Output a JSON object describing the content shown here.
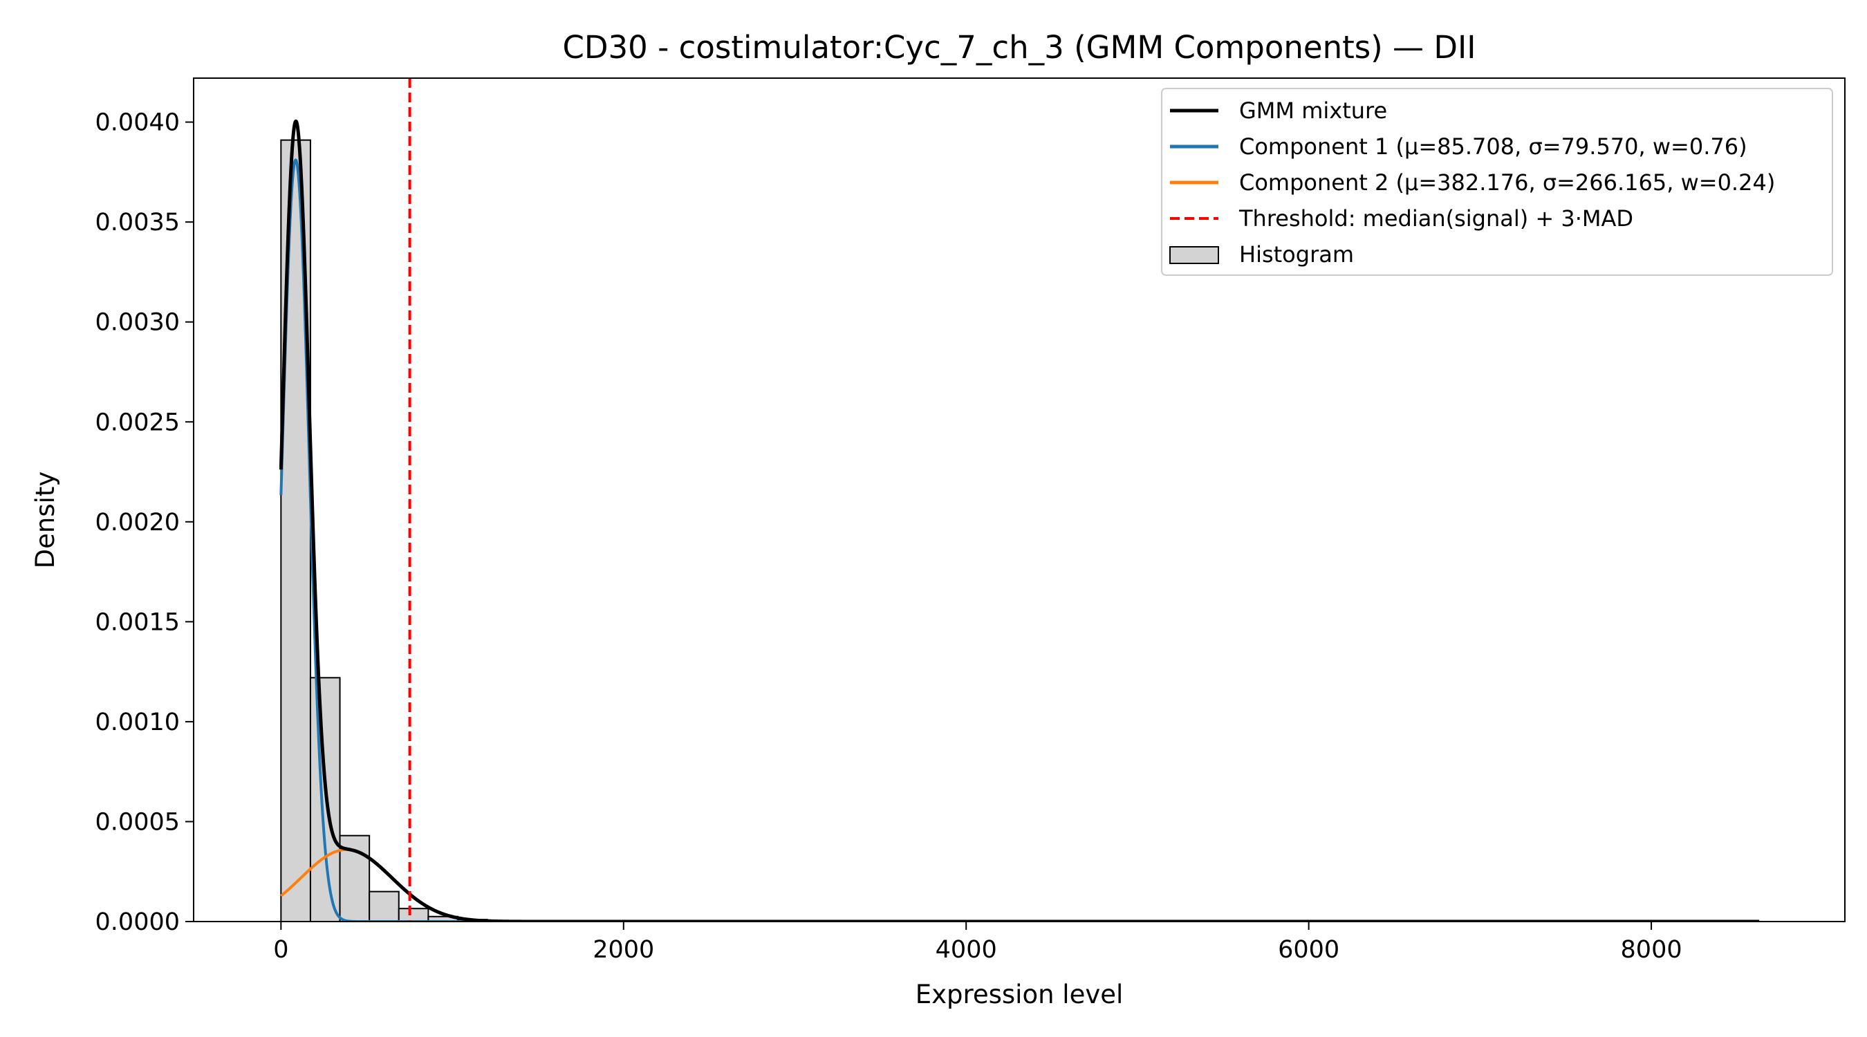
{
  "chart_data": {
    "type": "histogram",
    "title": "CD30 - costimulator:Cyc_7_ch_3 (GMM Components) — DII",
    "xlabel": "Expression level",
    "ylabel": "Density",
    "xlim": [
      -510,
      9130
    ],
    "ylim": [
      0,
      0.00422
    ],
    "xticks": [
      0,
      2000,
      4000,
      6000,
      8000
    ],
    "xtick_labels": [
      "0",
      "2000",
      "4000",
      "6000",
      "8000"
    ],
    "yticks": [
      0,
      0.0005,
      0.001,
      0.0015,
      0.002,
      0.0025,
      0.003,
      0.0035,
      0.004
    ],
    "ytick_labels": [
      "0.0000",
      "0.0005",
      "0.0010",
      "0.0015",
      "0.0020",
      "0.0025",
      "0.0030",
      "0.0035",
      "0.0040"
    ],
    "grid": false,
    "legend_position": "top-right",
    "histogram": {
      "name": "Histogram",
      "bin_edges": [
        0,
        172,
        344,
        516,
        688,
        860,
        1032,
        1204,
        1376,
        1548,
        1720,
        1892,
        2064,
        2236,
        2408,
        2580,
        2752,
        2924,
        3096,
        3268,
        3440,
        3612,
        3784,
        3956,
        4128,
        4300,
        4472,
        4644,
        4816,
        4988,
        5160,
        5332,
        5504,
        5676,
        5848,
        6020,
        6192,
        6364,
        6536,
        6708,
        6880,
        7052,
        7224,
        7396,
        7568,
        7740,
        7912,
        8084,
        8256,
        8428,
        8600
      ],
      "densities": [
        0.00391,
        0.00122,
        0.00043,
        0.00015,
        6.5e-05,
        2.5e-05,
        1e-05,
        4e-06,
        2e-06,
        1e-06,
        0,
        0,
        0,
        0,
        0,
        0,
        0,
        0,
        0,
        0,
        0,
        0,
        0,
        0,
        0,
        0,
        0,
        0,
        0,
        0,
        0,
        0,
        0,
        0,
        0,
        0,
        0,
        0,
        0,
        0,
        0,
        0,
        0,
        0,
        0,
        0,
        0,
        0,
        0,
        0
      ],
      "fill": "#d3d3d3",
      "edge": "#000000"
    },
    "series": [
      {
        "name": "GMM mixture",
        "kind": "mixture",
        "color": "#000000",
        "x_range": [
          0,
          8630
        ]
      },
      {
        "name": "Component 1 (μ=85.708, σ=79.570, w=0.76)",
        "kind": "gaussian",
        "mu": 85.708,
        "sigma": 79.57,
        "weight": 0.76,
        "color": "#1f77b4",
        "x_range": [
          0,
          8630
        ]
      },
      {
        "name": "Component 2 (μ=382.176, σ=266.165, w=0.24)",
        "kind": "gaussian",
        "mu": 382.176,
        "sigma": 266.165,
        "weight": 0.24,
        "color": "#ff7f0e",
        "x_range": [
          0,
          8630
        ]
      }
    ],
    "threshold": {
      "name": "Threshold: median(signal) + 3·MAD",
      "x": 752,
      "color": "#ff0000",
      "style": "dashed"
    },
    "legend": [
      {
        "label": "GMM mixture",
        "color": "#000000",
        "style": "line"
      },
      {
        "label": "Component 1 (μ=85.708, σ=79.570, w=0.76)",
        "color": "#1f77b4",
        "style": "line"
      },
      {
        "label": "Component 2 (μ=382.176, σ=266.165, w=0.24)",
        "color": "#ff7f0e",
        "style": "line"
      },
      {
        "label": "Threshold: median(signal) + 3·MAD",
        "color": "#ff0000",
        "style": "dashed"
      },
      {
        "label": "Histogram",
        "color": "#d3d3d3",
        "style": "patch"
      }
    ]
  }
}
